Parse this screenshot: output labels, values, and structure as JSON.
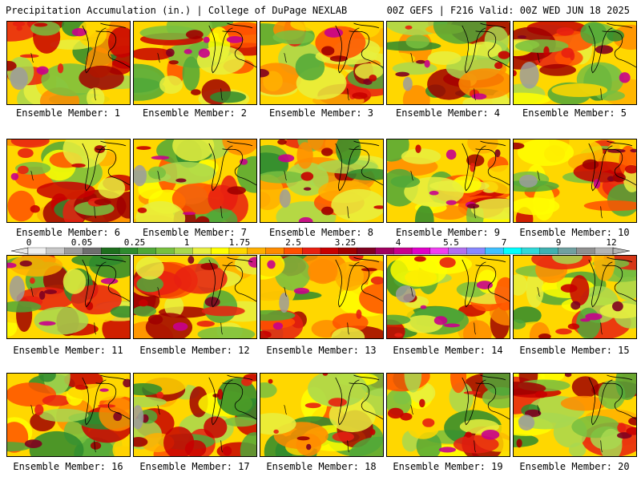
{
  "header": {
    "left": "Precipitation Accumulation (in.) | College of DuPage NEXLAB",
    "right": "00Z GEFS | F216 Valid: 00Z WED JUN 18 2025"
  },
  "members": [
    {
      "label": "Ensemble Member: 1"
    },
    {
      "label": "Ensemble Member: 2"
    },
    {
      "label": "Ensemble Member: 3"
    },
    {
      "label": "Ensemble Member: 4"
    },
    {
      "label": "Ensemble Member: 5"
    },
    {
      "label": "Ensemble Member: 6"
    },
    {
      "label": "Ensemble Member: 7"
    },
    {
      "label": "Ensemble Member: 8"
    },
    {
      "label": "Ensemble Member: 9"
    },
    {
      "label": "Ensemble Member: 10"
    },
    {
      "label": "Ensemble Member: 11"
    },
    {
      "label": "Ensemble Member: 12"
    },
    {
      "label": "Ensemble Member: 13"
    },
    {
      "label": "Ensemble Member: 14"
    },
    {
      "label": "Ensemble Member: 15"
    },
    {
      "label": "Ensemble Member: 16"
    },
    {
      "label": "Ensemble Member: 17"
    },
    {
      "label": "Ensemble Member: 18"
    },
    {
      "label": "Ensemble Member: 19"
    },
    {
      "label": "Ensemble Member: 20"
    }
  ],
  "legend": {
    "tick_labels": [
      "0",
      "0.05",
      "0.25",
      "1",
      "1.75",
      "2.5",
      "3.25",
      "4",
      "5.5",
      "7",
      "9",
      "12"
    ],
    "colors": [
      "#f0f0f0",
      "#c8c8c8",
      "#9c9c9c",
      "#6e6e6e",
      "#1e6e1e",
      "#2e8b2e",
      "#50a838",
      "#78c040",
      "#a8d850",
      "#e8f040",
      "#ffff00",
      "#ffd700",
      "#ffb000",
      "#ff8c00",
      "#ff5000",
      "#e82010",
      "#c80000",
      "#a00000",
      "#800020",
      "#a00060",
      "#c8008c",
      "#e000c8",
      "#f040f0",
      "#b070f0",
      "#8888ff",
      "#40c0ff",
      "#00ffff",
      "#30d8d8",
      "#40b0b0",
      "#70a0a0",
      "#909090",
      "#b4b4b4"
    ]
  }
}
